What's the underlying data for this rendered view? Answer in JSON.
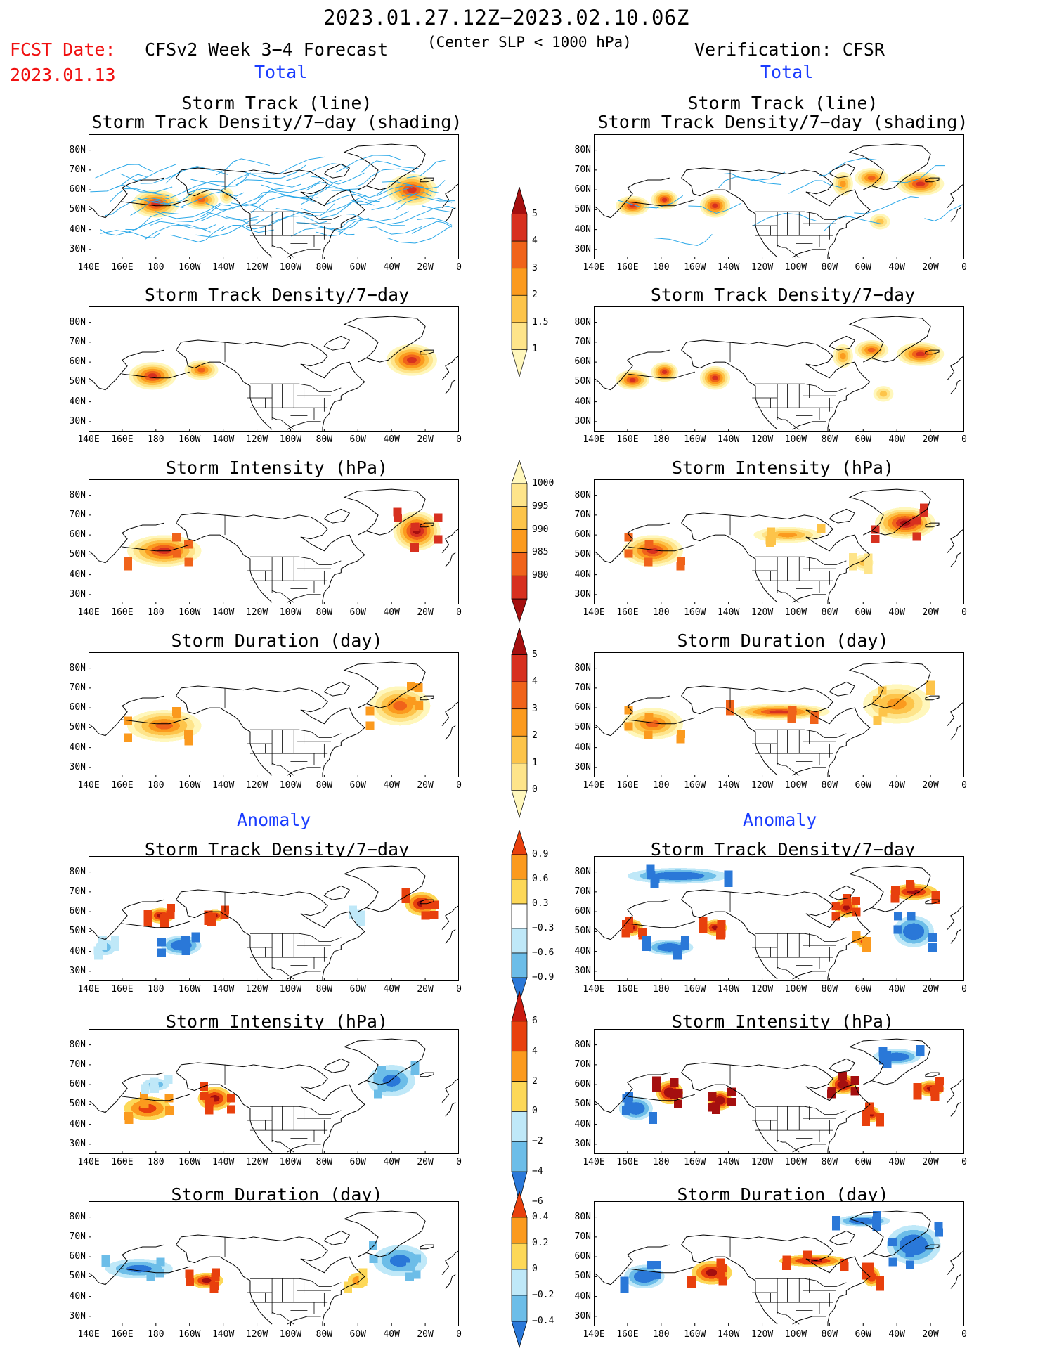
{
  "header": {
    "title": "2023.01.27.12Z−2023.02.10.06Z",
    "fcst_label": "FCST Date:",
    "fcst_date": "2023.01.13",
    "forecast_title": "CFSv2 Week 3−4 Forecast",
    "forecast_subtitle": "(Center SLP < 1000 hPa)",
    "verification_title": "Verification: CFSR"
  },
  "sections": {
    "total": "Total",
    "anomaly": "Anomaly"
  },
  "panel_titles": {
    "track_line": "Storm Track (line)",
    "track_shading": "Storm Track Density/7−day (shading)",
    "density": "Storm Track Density/7−day",
    "intensity": "Storm Intensity (hPa)",
    "duration": "Storm Duration (day)"
  },
  "axes": {
    "lat_ticks": [
      "80N",
      "70N",
      "60N",
      "50N",
      "40N",
      "30N"
    ],
    "lon_ticks": [
      "140E",
      "160E",
      "180",
      "160W",
      "140W",
      "120W",
      "100W",
      "80W",
      "60W",
      "40W",
      "20W",
      "0"
    ]
  },
  "colorbars": {
    "density_total": {
      "labels": [
        "5",
        "4",
        "3",
        "2",
        "1.5",
        "1"
      ],
      "colors": [
        "#a50f0f",
        "#d7301f",
        "#f0631a",
        "#fb9a1e",
        "#fdc44a",
        "#fee48a",
        "#fff7bc"
      ]
    },
    "intensity_total": {
      "labels": [
        "1000",
        "995",
        "990",
        "985",
        "980"
      ],
      "colors": [
        "#fff7bc",
        "#fee48a",
        "#fdc44a",
        "#fb9a1e",
        "#f0631a",
        "#d7301f",
        "#a50f0f"
      ]
    },
    "duration_total": {
      "labels": [
        "5",
        "4",
        "3",
        "2",
        "1",
        "0"
      ],
      "colors": [
        "#a50f0f",
        "#d7301f",
        "#f0631a",
        "#fb9a1e",
        "#fdc44a",
        "#fee48a",
        "#fff7bc"
      ]
    },
    "density_anom": {
      "labels": [
        "0.9",
        "0.6",
        "0.3",
        "−0.3",
        "−0.6",
        "−0.9"
      ],
      "colors": [
        "#e8400d",
        "#fb9a1e",
        "#fdd858",
        "#ffffff",
        "#bfe8f8",
        "#6cbde8",
        "#2a78d8"
      ]
    },
    "intensity_anom": {
      "labels": [
        "6",
        "4",
        "2",
        "0",
        "−2",
        "−4",
        "−6"
      ],
      "colors": [
        "#c81a10",
        "#e8400d",
        "#fb9a1e",
        "#fdd858",
        "#bfe8f8",
        "#6cbde8",
        "#2a78d8"
      ]
    },
    "duration_anom": {
      "labels": [
        "0.4",
        "0.2",
        "0",
        "−0.2",
        "−0.4"
      ],
      "colors": [
        "#e8400d",
        "#fb9a1e",
        "#fdd858",
        "#bfe8f8",
        "#6cbde8",
        "#2a78d8"
      ]
    }
  },
  "palette": {
    "warm": [
      "#fff7bc",
      "#fee48a",
      "#fdc44a",
      "#fb9a1e",
      "#f0631a",
      "#d7301f",
      "#a50f0f"
    ],
    "anom_pos": [
      "#fdd858",
      "#fb9a1e",
      "#e8400d",
      "#a50f0f"
    ],
    "anom_neg": [
      "#bfe8f8",
      "#6cbde8",
      "#2a78d8"
    ],
    "track_line": "#2aa8e8",
    "coast": "#000000"
  }
}
